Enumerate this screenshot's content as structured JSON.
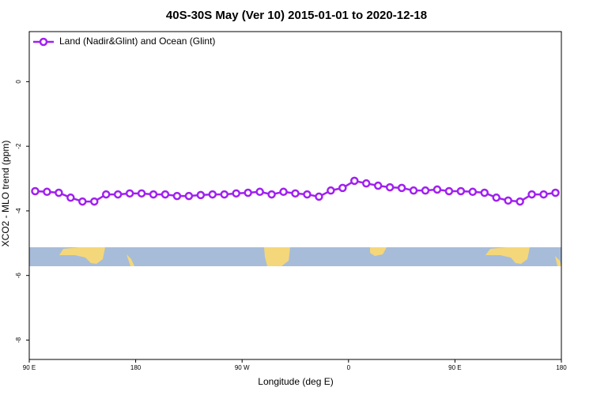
{
  "chart_data": {
    "type": "line",
    "title": "40S-30S May (Ver 10)   2015-01-01 to 2020-12-18",
    "x_label": "Longitude (deg E)",
    "y_label": "XCO2 - MLO trend (ppm)",
    "x": [
      95,
      105,
      115,
      125,
      135,
      145,
      155,
      165,
      175,
      185,
      195,
      205,
      215,
      225,
      235,
      245,
      255,
      265,
      275,
      285,
      295,
      305,
      315,
      325,
      335,
      345,
      355,
      365,
      375,
      385,
      395,
      405,
      415,
      425,
      435,
      445,
      455,
      465,
      475,
      485,
      495,
      505,
      515,
      525,
      535
    ],
    "series": [
      {
        "name": "Land (Nadir&Glint) and Ocean (Glint)",
        "color": "#a020f0",
        "values": [
          -3.39,
          -3.41,
          -3.44,
          -3.59,
          -3.71,
          -3.71,
          -3.49,
          -3.49,
          -3.46,
          -3.46,
          -3.49,
          -3.49,
          -3.54,
          -3.54,
          -3.51,
          -3.49,
          -3.49,
          -3.46,
          -3.44,
          -3.41,
          -3.49,
          -3.41,
          -3.46,
          -3.49,
          -3.56,
          -3.37,
          -3.29,
          -3.07,
          -3.15,
          -3.22,
          -3.27,
          -3.29,
          -3.37,
          -3.37,
          -3.34,
          -3.39,
          -3.39,
          -3.41,
          -3.44,
          -3.59,
          -3.68,
          -3.71,
          -3.49,
          -3.49,
          -3.44
        ]
      }
    ],
    "xlim": [
      90,
      540
    ],
    "xticks": [
      {
        "value": 90,
        "label": "90 E"
      },
      180,
      {
        "value": 270,
        "label": "90 W"
      },
      {
        "value": 360,
        "label": "0"
      },
      {
        "value": 450,
        "label": "90 E"
      },
      {
        "value": 540,
        "label": "180"
      }
    ],
    "ylim": [
      -8.6,
      1.55
    ],
    "yticks": [
      0,
      -2,
      -4,
      -6,
      -8
    ],
    "legend": "top-left"
  }
}
